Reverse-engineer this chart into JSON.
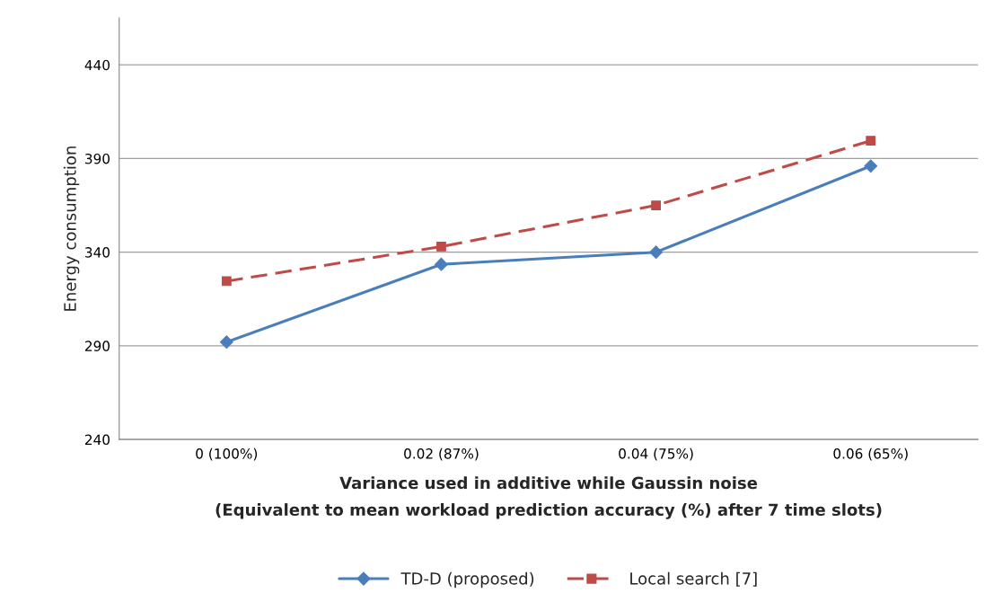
{
  "chart_data": {
    "type": "line",
    "xlabel": "Variance used in additive while Gaussin noise\n(Equivalent to mean workload prediction accuracy (%) after 7 time slots)",
    "ylabel": "Energy consumption",
    "categories": [
      "0 (100%)",
      "0.02 (87%)",
      "0.04 (75%)",
      "0.06 (65%)"
    ],
    "series": [
      {
        "name": "TD-D (proposed)",
        "color": "#4a7ebb",
        "marker": "diamond",
        "line_style": "solid",
        "values": [
          292,
          333.5,
          340,
          386
        ]
      },
      {
        "name": "Local search [7]",
        "color": "#be4b48",
        "marker": "square",
        "line_style": "dashed",
        "values": [
          324.5,
          343,
          365,
          399.5
        ]
      }
    ],
    "ylim": [
      240,
      465
    ],
    "yticks": [
      240,
      290,
      340,
      390,
      440
    ],
    "grid": "y",
    "legend": "bottom"
  }
}
